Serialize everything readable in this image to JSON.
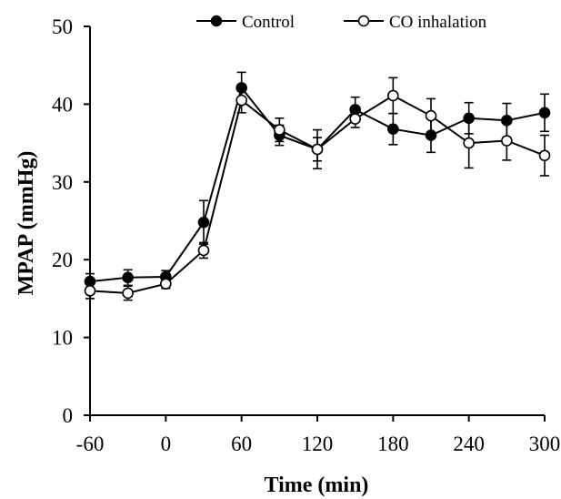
{
  "chart_data": {
    "type": "line",
    "xlabel": "Time (min)",
    "ylabel": "MPAP (mmHg)",
    "xlim": [
      -60,
      300
    ],
    "ylim": [
      0,
      50
    ],
    "x_ticks": [
      -60,
      0,
      60,
      120,
      180,
      240,
      300
    ],
    "y_ticks": [
      0,
      10,
      20,
      30,
      40,
      50
    ],
    "x_tick_labels": [
      "-60",
      "0",
      "60",
      "120",
      "180",
      "240",
      "300"
    ],
    "y_tick_labels": [
      "0",
      "10",
      "20",
      "30",
      "40",
      "50"
    ],
    "grid": false,
    "legend_position": "top",
    "x": [
      -60,
      -30,
      0,
      30,
      60,
      90,
      120,
      150,
      180,
      210,
      240,
      270,
      300
    ],
    "series": [
      {
        "name": "Control",
        "marker": "filled-circle",
        "color": "#000000",
        "values": [
          17.2,
          17.7,
          17.8,
          24.8,
          42.1,
          36.0,
          34.2,
          39.3,
          36.8,
          36.0,
          38.2,
          37.9,
          38.9
        ],
        "errors": [
          1.0,
          1.0,
          0.8,
          2.8,
          2.0,
          1.3,
          1.5,
          1.6,
          2.0,
          2.2,
          2.0,
          2.2,
          2.4
        ]
      },
      {
        "name": "CO inhalation",
        "marker": "open-circle",
        "color": "#000000",
        "values": [
          16.0,
          15.7,
          16.9,
          21.2,
          40.5,
          36.7,
          34.2,
          38.1,
          41.1,
          38.5,
          35.0,
          35.3,
          33.4
        ],
        "errors": [
          1.0,
          0.9,
          0.6,
          1.0,
          1.6,
          1.5,
          2.5,
          1.1,
          2.3,
          2.2,
          3.2,
          2.5,
          2.6
        ]
      }
    ]
  }
}
